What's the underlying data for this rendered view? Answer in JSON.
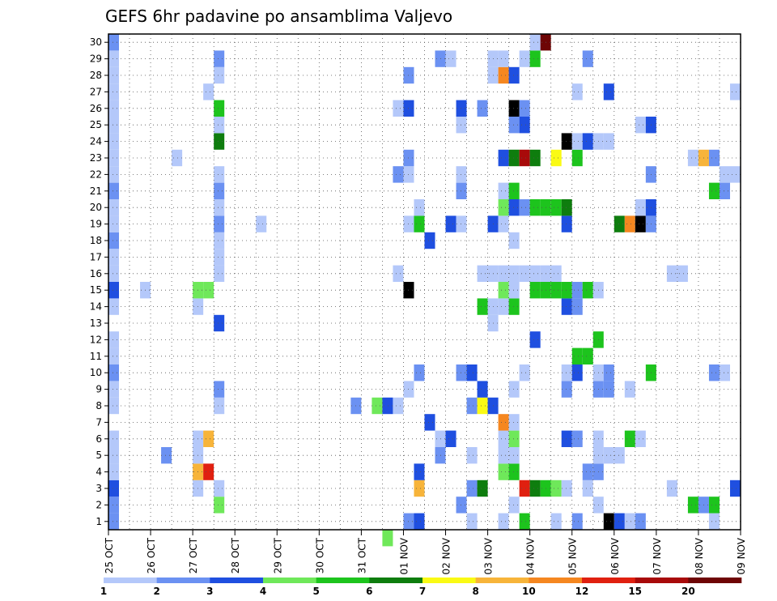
{
  "chart_data": {
    "type": "heatmap",
    "title": "GEFS 6hr padavine po ansamblima Valjevo",
    "xlabel": "",
    "ylabel": "",
    "x_ticks": [
      "25 OCT",
      "26 OCT",
      "27 OCT",
      "28 OCT",
      "29 OCT",
      "30 OCT",
      "31 OCT",
      "01 NOV",
      "02 NOV",
      "03 NOV",
      "04 NOV",
      "05 NOV",
      "06 NOV",
      "07 NOV",
      "08 NOV",
      "09 NOV"
    ],
    "y_ticks": [
      1,
      2,
      3,
      4,
      5,
      6,
      7,
      8,
      9,
      10,
      11,
      12,
      13,
      14,
      15,
      16,
      17,
      18,
      19,
      20,
      21,
      22,
      23,
      24,
      25,
      26,
      27,
      28,
      29,
      30
    ],
    "steps_per_day": 4,
    "xlim_steps": [
      0,
      60
    ],
    "ylim": [
      0.5,
      30.5
    ],
    "grid": true,
    "legend": {
      "placement": "bottom",
      "levels": [
        1,
        2,
        3,
        4,
        5,
        6,
        7,
        8,
        10,
        12,
        15,
        20
      ],
      "colors": [
        "#b4c8fa",
        "#6b91f2",
        "#1f4fe0",
        "#6fe85a",
        "#1dc41d",
        "#0e7d0e",
        "#fafa14",
        "#f7b43a",
        "#f58720",
        "#e02010",
        "#a80a0a",
        "#6e0505"
      ]
    },
    "cells": [
      [
        0,
        1,
        2
      ],
      [
        0,
        2,
        2
      ],
      [
        0,
        3,
        3
      ],
      [
        0,
        4,
        1
      ],
      [
        0,
        5,
        1
      ],
      [
        0,
        6,
        1
      ],
      [
        0,
        8,
        1
      ],
      [
        0,
        9,
        1
      ],
      [
        0,
        10,
        2
      ],
      [
        0,
        11,
        1
      ],
      [
        0,
        12,
        1
      ],
      [
        0,
        14,
        1
      ],
      [
        0,
        15,
        3
      ],
      [
        0,
        16,
        1
      ],
      [
        0,
        17,
        1
      ],
      [
        0,
        18,
        2
      ],
      [
        0,
        19,
        1
      ],
      [
        0,
        20,
        1
      ],
      [
        0,
        21,
        2
      ],
      [
        0,
        22,
        1
      ],
      [
        0,
        23,
        1
      ],
      [
        0,
        24,
        1
      ],
      [
        0,
        25,
        1
      ],
      [
        0,
        26,
        1
      ],
      [
        0,
        27,
        1
      ],
      [
        0,
        28,
        1
      ],
      [
        0,
        29,
        1
      ],
      [
        0,
        30,
        2
      ],
      [
        3,
        15,
        1
      ],
      [
        5,
        5,
        2
      ],
      [
        6,
        23,
        1
      ],
      [
        8,
        3,
        1
      ],
      [
        8,
        4,
        8
      ],
      [
        8,
        5,
        1
      ],
      [
        8,
        6,
        1
      ],
      [
        8,
        14,
        1
      ],
      [
        8,
        15,
        4
      ],
      [
        9,
        4,
        10
      ],
      [
        9,
        6,
        8
      ],
      [
        9,
        15,
        4
      ],
      [
        9,
        27,
        1
      ],
      [
        10,
        2,
        4
      ],
      [
        10,
        3,
        1
      ],
      [
        10,
        8,
        1
      ],
      [
        10,
        9,
        2
      ],
      [
        10,
        13,
        3
      ],
      [
        10,
        16,
        1
      ],
      [
        10,
        17,
        1
      ],
      [
        10,
        18,
        1
      ],
      [
        10,
        19,
        2
      ],
      [
        10,
        20,
        1
      ],
      [
        10,
        21,
        2
      ],
      [
        10,
        22,
        1
      ],
      [
        10,
        24,
        6
      ],
      [
        10,
        25,
        1
      ],
      [
        10,
        26,
        5
      ],
      [
        10,
        28,
        1
      ],
      [
        10,
        29,
        2
      ],
      [
        14,
        19,
        1
      ],
      [
        23,
        8,
        2
      ],
      [
        25,
        8,
        4
      ],
      [
        26,
        0,
        4
      ],
      [
        26,
        8,
        3
      ],
      [
        27,
        8,
        1
      ],
      [
        27,
        16,
        1
      ],
      [
        27,
        22,
        2
      ],
      [
        27,
        26,
        1
      ],
      [
        28,
        1,
        2
      ],
      [
        28,
        9,
        1
      ],
      [
        28,
        15,
        15
      ],
      [
        28,
        19,
        1
      ],
      [
        28,
        22,
        1
      ],
      [
        28,
        23,
        2
      ],
      [
        28,
        26,
        3
      ],
      [
        28,
        28,
        2
      ],
      [
        29,
        1,
        3
      ],
      [
        29,
        3,
        8
      ],
      [
        29,
        4,
        3
      ],
      [
        29,
        10,
        2
      ],
      [
        29,
        19,
        5
      ],
      [
        29,
        20,
        1
      ],
      [
        30,
        7,
        3
      ],
      [
        30,
        18,
        3
      ],
      [
        31,
        5,
        2
      ],
      [
        31,
        6,
        1
      ],
      [
        31,
        29,
        2
      ],
      [
        32,
        6,
        3
      ],
      [
        32,
        19,
        3
      ],
      [
        32,
        29,
        1
      ],
      [
        33,
        2,
        2
      ],
      [
        33,
        10,
        2
      ],
      [
        33,
        19,
        1
      ],
      [
        33,
        21,
        2
      ],
      [
        33,
        22,
        1
      ],
      [
        33,
        25,
        1
      ],
      [
        33,
        26,
        3
      ],
      [
        34,
        1,
        1
      ],
      [
        34,
        3,
        2
      ],
      [
        34,
        5,
        1
      ],
      [
        34,
        8,
        2
      ],
      [
        34,
        10,
        3
      ],
      [
        35,
        3,
        6
      ],
      [
        35,
        8,
        7
      ],
      [
        35,
        9,
        3
      ],
      [
        35,
        14,
        5
      ],
      [
        35,
        16,
        1
      ],
      [
        35,
        26,
        2
      ],
      [
        36,
        8,
        3
      ],
      [
        36,
        13,
        1
      ],
      [
        36,
        14,
        1
      ],
      [
        36,
        16,
        1
      ],
      [
        36,
        19,
        3
      ],
      [
        36,
        28,
        1
      ],
      [
        36,
        29,
        1
      ],
      [
        37,
        1,
        1
      ],
      [
        37,
        4,
        4
      ],
      [
        37,
        5,
        1
      ],
      [
        37,
        6,
        1
      ],
      [
        37,
        7,
        9
      ],
      [
        37,
        14,
        1
      ],
      [
        37,
        15,
        4
      ],
      [
        37,
        16,
        1
      ],
      [
        37,
        19,
        1
      ],
      [
        37,
        20,
        4
      ],
      [
        37,
        21,
        1
      ],
      [
        37,
        23,
        3
      ],
      [
        37,
        28,
        9
      ],
      [
        37,
        29,
        1
      ],
      [
        38,
        2,
        1
      ],
      [
        38,
        4,
        5
      ],
      [
        38,
        5,
        1
      ],
      [
        38,
        6,
        4
      ],
      [
        38,
        7,
        1
      ],
      [
        38,
        9,
        1
      ],
      [
        38,
        14,
        5
      ],
      [
        38,
        15,
        1
      ],
      [
        38,
        16,
        1
      ],
      [
        38,
        18,
        1
      ],
      [
        38,
        20,
        3
      ],
      [
        38,
        21,
        5
      ],
      [
        38,
        23,
        6
      ],
      [
        38,
        25,
        2
      ],
      [
        38,
        26,
        15
      ],
      [
        38,
        28,
        3
      ],
      [
        39,
        1,
        5
      ],
      [
        39,
        3,
        10
      ],
      [
        39,
        10,
        1
      ],
      [
        39,
        16,
        1
      ],
      [
        39,
        20,
        2
      ],
      [
        39,
        23,
        11
      ],
      [
        39,
        25,
        3
      ],
      [
        39,
        26,
        2
      ],
      [
        39,
        29,
        1
      ],
      [
        40,
        3,
        6
      ],
      [
        40,
        12,
        3
      ],
      [
        40,
        15,
        5
      ],
      [
        40,
        16,
        1
      ],
      [
        40,
        20,
        5
      ],
      [
        40,
        23,
        6
      ],
      [
        40,
        29,
        5
      ],
      [
        40,
        30,
        1
      ],
      [
        41,
        3,
        5
      ],
      [
        41,
        15,
        5
      ],
      [
        41,
        16,
        1
      ],
      [
        41,
        20,
        5
      ],
      [
        41,
        30,
        12
      ],
      [
        42,
        1,
        1
      ],
      [
        42,
        3,
        4
      ],
      [
        42,
        15,
        5
      ],
      [
        42,
        16,
        1
      ],
      [
        42,
        20,
        5
      ],
      [
        42,
        23,
        7
      ],
      [
        43,
        3,
        1
      ],
      [
        43,
        6,
        3
      ],
      [
        43,
        9,
        2
      ],
      [
        43,
        10,
        1
      ],
      [
        43,
        14,
        3
      ],
      [
        43,
        15,
        5
      ],
      [
        43,
        19,
        3
      ],
      [
        43,
        20,
        6
      ],
      [
        43,
        24,
        20
      ],
      [
        44,
        1,
        2
      ],
      [
        44,
        6,
        2
      ],
      [
        44,
        10,
        3
      ],
      [
        44,
        11,
        5
      ],
      [
        44,
        14,
        2
      ],
      [
        44,
        15,
        2
      ],
      [
        44,
        23,
        5
      ],
      [
        44,
        24,
        1
      ],
      [
        44,
        27,
        1
      ],
      [
        45,
        3,
        1
      ],
      [
        45,
        4,
        2
      ],
      [
        45,
        11,
        5
      ],
      [
        45,
        15,
        5
      ],
      [
        45,
        24,
        3
      ],
      [
        45,
        29,
        2
      ],
      [
        46,
        2,
        1
      ],
      [
        46,
        4,
        2
      ],
      [
        46,
        5,
        1
      ],
      [
        46,
        6,
        1
      ],
      [
        46,
        9,
        2
      ],
      [
        46,
        10,
        1
      ],
      [
        46,
        12,
        5
      ],
      [
        46,
        15,
        1
      ],
      [
        46,
        24,
        1
      ],
      [
        47,
        1,
        15
      ],
      [
        47,
        5,
        1
      ],
      [
        47,
        9,
        2
      ],
      [
        47,
        10,
        2
      ],
      [
        47,
        24,
        1
      ],
      [
        47,
        27,
        3
      ],
      [
        48,
        1,
        3
      ],
      [
        48,
        5,
        1
      ],
      [
        48,
        19,
        6
      ],
      [
        49,
        1,
        1
      ],
      [
        49,
        6,
        5
      ],
      [
        49,
        9,
        1
      ],
      [
        49,
        19,
        9
      ],
      [
        50,
        1,
        2
      ],
      [
        50,
        6,
        1
      ],
      [
        50,
        19,
        15
      ],
      [
        50,
        20,
        1
      ],
      [
        50,
        25,
        1
      ],
      [
        51,
        10,
        5
      ],
      [
        51,
        19,
        2
      ],
      [
        51,
        20,
        3
      ],
      [
        51,
        22,
        2
      ],
      [
        51,
        25,
        3
      ],
      [
        53,
        3,
        1
      ],
      [
        53,
        16,
        1
      ],
      [
        54,
        16,
        1
      ],
      [
        55,
        2,
        5
      ],
      [
        55,
        23,
        1
      ],
      [
        56,
        2,
        2
      ],
      [
        56,
        23,
        8
      ],
      [
        57,
        1,
        1
      ],
      [
        57,
        2,
        5
      ],
      [
        57,
        10,
        2
      ],
      [
        57,
        21,
        5
      ],
      [
        57,
        23,
        2
      ],
      [
        58,
        10,
        1
      ],
      [
        58,
        21,
        2
      ],
      [
        58,
        22,
        1
      ],
      [
        59,
        3,
        3
      ],
      [
        59,
        22,
        1
      ],
      [
        59,
        27,
        1
      ],
      [
        60,
        3,
        10
      ],
      [
        60,
        9,
        5
      ],
      [
        60,
        27,
        1
      ],
      [
        60,
        30,
        1
      ],
      [
        61,
        9,
        1
      ],
      [
        61,
        10,
        3
      ],
      [
        61,
        27,
        1
      ],
      [
        61,
        30,
        3
      ],
      [
        62,
        26,
        1
      ],
      [
        62,
        29,
        1
      ],
      [
        63,
        26,
        5
      ]
    ]
  }
}
